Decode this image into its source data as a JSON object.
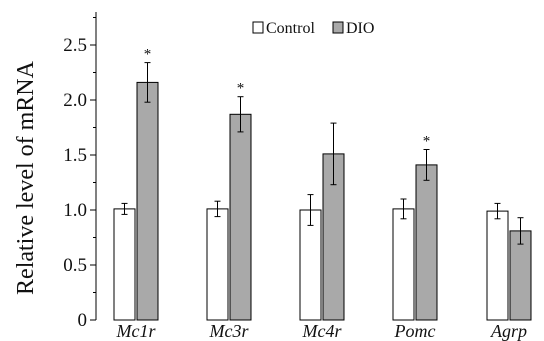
{
  "chart_data": {
    "type": "bar",
    "categories": [
      "Mc1r",
      "Mc3r",
      "Mc4r",
      "Pomc",
      "Agrp"
    ],
    "series": [
      {
        "name": "Control",
        "values": [
          1.01,
          1.01,
          1.0,
          1.01,
          0.99
        ],
        "errors": [
          0.05,
          0.07,
          0.14,
          0.09,
          0.07
        ],
        "color": "#ffffff"
      },
      {
        "name": "DIO",
        "values": [
          2.16,
          1.87,
          1.51,
          1.41,
          0.81
        ],
        "errors": [
          0.18,
          0.16,
          0.28,
          0.14,
          0.12
        ],
        "color": "#a9a9a9"
      }
    ],
    "significance": [
      "*",
      "*",
      "",
      "*",
      ""
    ],
    "title": "",
    "xlabel": "",
    "ylabel": "Relative level of mRNA",
    "ylim": [
      0,
      2.8
    ],
    "yticks": [
      "0",
      "0.5",
      "1.0",
      "1.5",
      "2.0",
      "2.5"
    ],
    "legend_placement": "top-center",
    "grid": false
  }
}
